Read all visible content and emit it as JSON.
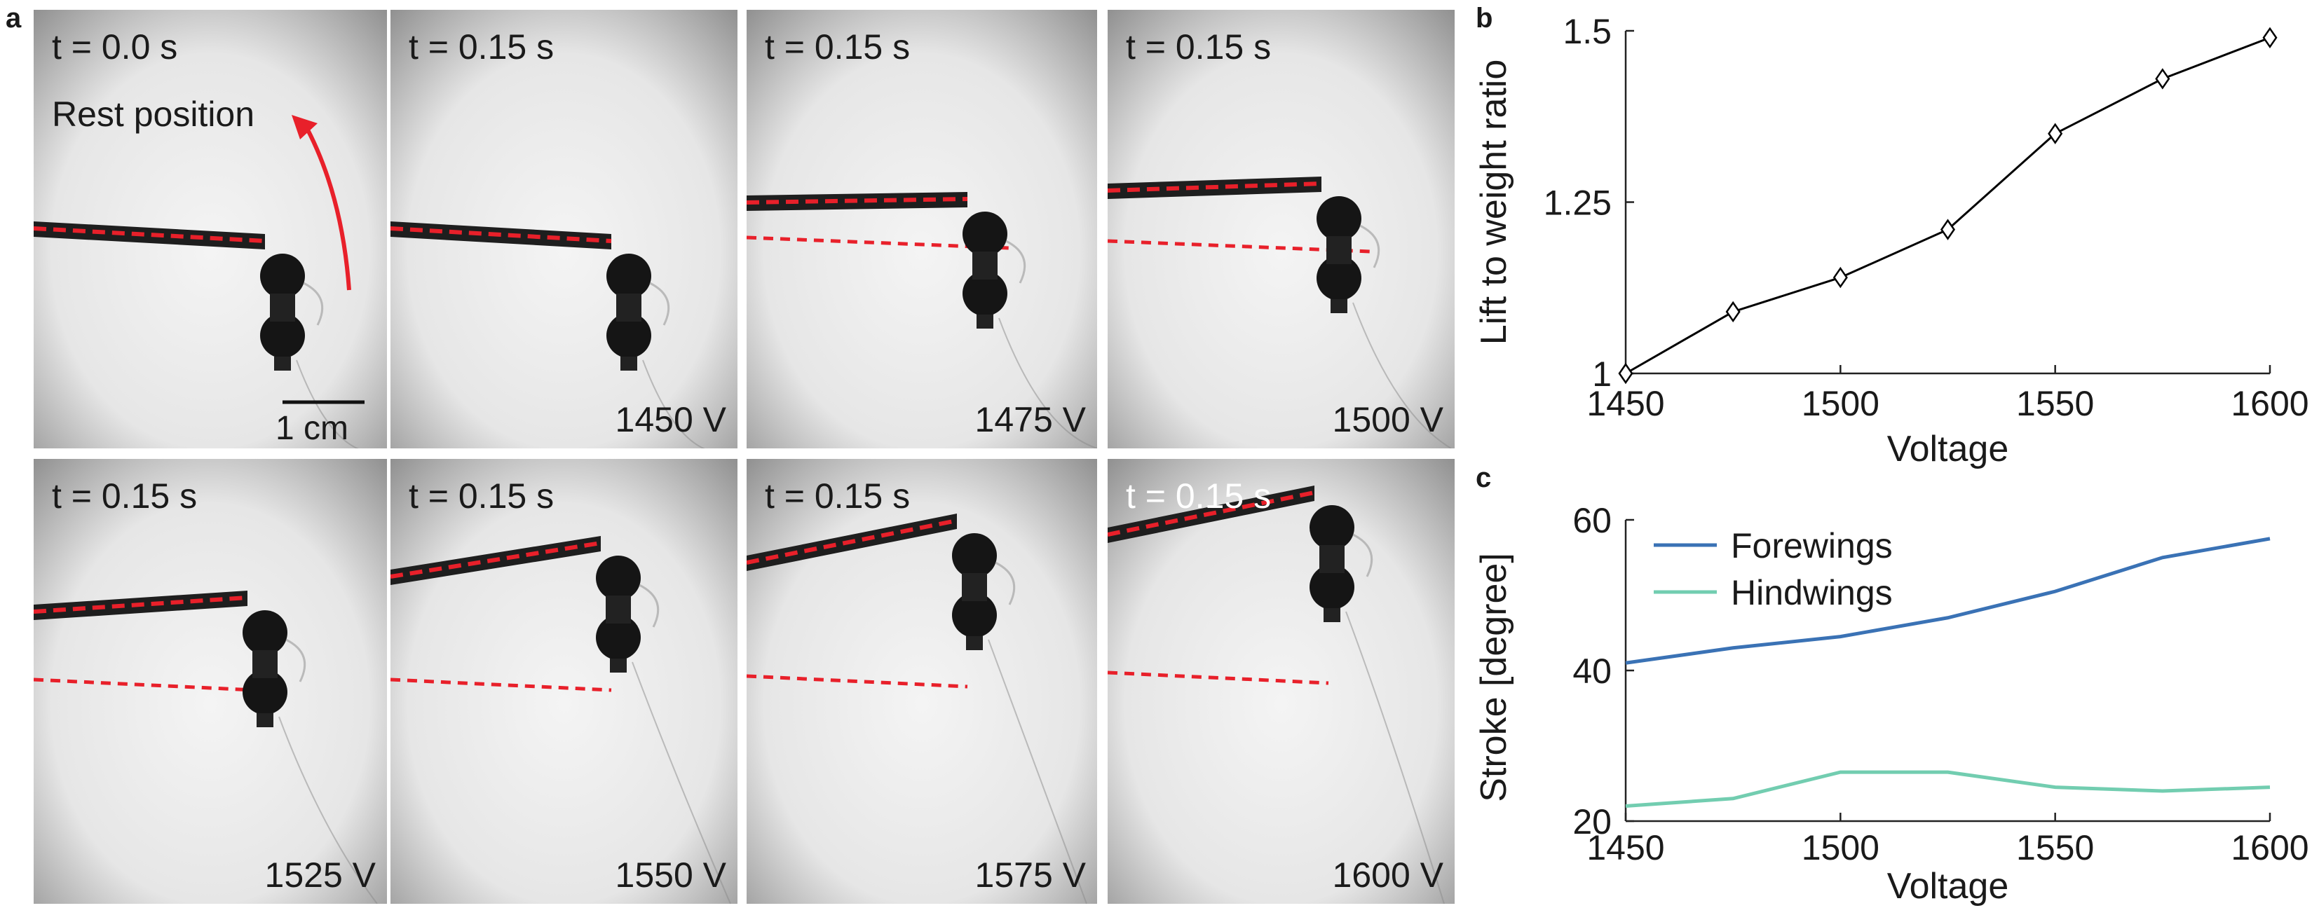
{
  "panel_labels": {
    "a": "a",
    "b": "b",
    "c": "c"
  },
  "frames": [
    {
      "time": "t = 0.0 s",
      "voltage": "",
      "note": "Rest position",
      "scale_bar": "1 cm"
    },
    {
      "time": "t = 0.15 s",
      "voltage": "1450 V"
    },
    {
      "time": "t = 0.15 s",
      "voltage": "1475 V"
    },
    {
      "time": "t = 0.15 s",
      "voltage": "1500 V"
    },
    {
      "time": "t = 0.15 s",
      "voltage": "1525 V"
    },
    {
      "time": "t = 0.15 s",
      "voltage": "1550 V"
    },
    {
      "time": "t = 0.15 s",
      "voltage": "1575 V"
    },
    {
      "time": "t = 0.15 s",
      "voltage": "1600 V"
    }
  ],
  "colors": {
    "dashed_line": "#e8202a",
    "arrow": "#e8202a",
    "forewings": "#3a72b5",
    "hindwings": "#72cdb0",
    "series_b": "#000000"
  },
  "chart_data": [
    {
      "type": "line",
      "panel": "b",
      "x": [
        1450,
        1475,
        1500,
        1525,
        1550,
        1575,
        1600
      ],
      "series": [
        {
          "values": [
            1.0,
            1.09,
            1.14,
            1.21,
            1.35,
            1.43,
            1.49
          ],
          "marker": "diamond"
        }
      ],
      "xlabel": "Voltage",
      "ylabel": "Lift to weight ratio",
      "xlim": [
        1450,
        1600
      ],
      "ylim": [
        1,
        1.5
      ],
      "xticks": [
        "1450",
        "1500",
        "1550",
        "1600"
      ],
      "yticks": [
        "1",
        "1.25",
        "1.5"
      ],
      "grid": false
    },
    {
      "type": "line",
      "panel": "c",
      "x": [
        1450,
        1475,
        1500,
        1525,
        1550,
        1575,
        1600
      ],
      "series": [
        {
          "name": "Forewings",
          "values": [
            41,
            43,
            44.5,
            47,
            50.5,
            55,
            57.5
          ]
        },
        {
          "name": "Hindwings",
          "values": [
            22,
            23,
            26.5,
            26.5,
            24.5,
            24,
            24.5
          ]
        }
      ],
      "xlabel": "Voltage",
      "ylabel": "Stroke [degree]",
      "xlim": [
        1450,
        1600
      ],
      "ylim": [
        20,
        60
      ],
      "xticks": [
        "1450",
        "1500",
        "1550",
        "1600"
      ],
      "yticks": [
        "20",
        "40",
        "60"
      ],
      "legend": "top-left",
      "grid": false
    }
  ]
}
